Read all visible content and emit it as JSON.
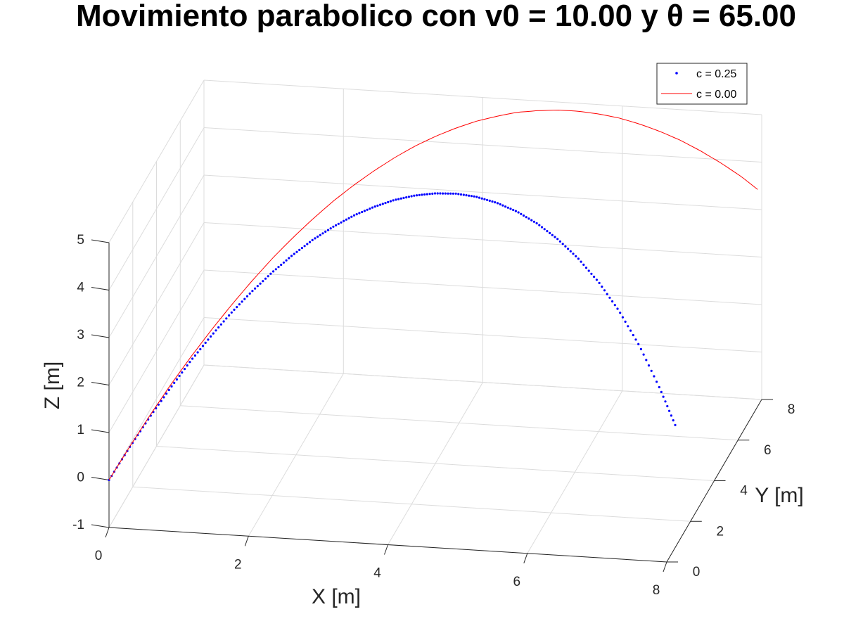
{
  "chart_data": {
    "type": "scatter",
    "projection": "3d",
    "title": "Movimiento parabolico con v0 = 10.00 y θ = 65.00",
    "xlabel": "X [m]",
    "ylabel": "Y [m]",
    "zlabel": "Z [m]",
    "xlim": [
      0,
      8
    ],
    "ylim": [
      0,
      8
    ],
    "zlim": [
      -1,
      5
    ],
    "x_ticks": [
      "0",
      "2",
      "4",
      "6",
      "8"
    ],
    "y_ticks": [
      "0",
      "2",
      "4",
      "6",
      "8"
    ],
    "z_ticks": [
      "-1",
      "0",
      "1",
      "2",
      "3",
      "4",
      "5"
    ],
    "grid": true,
    "legend_position": "top-right",
    "series": [
      {
        "name": "c = 0.25",
        "style": "dots",
        "color": "#0000ff",
        "samples": 220,
        "x": [
          0.0,
          0.25,
          0.5,
          0.75,
          1.0,
          1.25,
          1.5,
          1.75,
          2.0,
          2.25,
          2.5,
          2.75,
          3.0,
          3.25,
          3.5,
          3.75,
          4.0,
          4.25,
          4.5,
          4.75,
          5.0,
          5.25,
          5.5,
          5.75,
          6.0,
          6.25,
          6.5,
          6.75,
          6.94
        ],
        "y": [
          0.0,
          0.25,
          0.5,
          0.75,
          1.0,
          1.25,
          1.5,
          1.75,
          2.0,
          2.25,
          2.5,
          2.75,
          3.0,
          3.25,
          3.5,
          3.75,
          4.0,
          4.25,
          4.5,
          4.75,
          5.0,
          5.25,
          5.5,
          5.75,
          6.0,
          6.25,
          6.5,
          6.75,
          6.94
        ],
        "z": [
          0.0,
          0.6,
          1.16,
          1.68,
          2.17,
          2.61,
          3.02,
          3.38,
          3.7,
          3.98,
          4.22,
          4.41,
          4.56,
          4.66,
          4.72,
          4.73,
          4.69,
          4.6,
          4.45,
          4.24,
          3.97,
          3.63,
          3.22,
          2.73,
          2.15,
          1.46,
          0.64,
          -0.34,
          -1.18
        ]
      },
      {
        "name": "c = 0.00",
        "style": "line",
        "color": "#ff0000",
        "samples": 120,
        "x": [
          0.0,
          0.25,
          0.5,
          0.75,
          1.0,
          1.25,
          1.5,
          1.75,
          2.0,
          2.25,
          2.5,
          2.75,
          3.0,
          3.25,
          3.5,
          3.75,
          4.0,
          4.25,
          4.5,
          4.75,
          5.0,
          5.25,
          5.5,
          5.75,
          6.0,
          6.25,
          6.5,
          6.75,
          7.0,
          7.25,
          7.5,
          7.75,
          7.95
        ],
        "y": [
          0.0,
          0.25,
          0.5,
          0.75,
          1.0,
          1.25,
          1.5,
          1.75,
          2.0,
          2.25,
          2.5,
          2.75,
          3.0,
          3.25,
          3.5,
          3.75,
          4.0,
          4.25,
          4.5,
          4.75,
          5.0,
          5.25,
          5.5,
          5.75,
          6.0,
          6.25,
          6.5,
          6.75,
          7.0,
          7.25,
          7.5,
          7.75,
          7.95
        ],
        "z": [
          0.0,
          0.61,
          1.19,
          1.74,
          2.25,
          2.73,
          3.18,
          3.6,
          3.99,
          4.34,
          4.66,
          4.95,
          5.2,
          5.42,
          5.61,
          5.77,
          5.89,
          5.98,
          6.04,
          6.06,
          6.06,
          6.01,
          5.94,
          5.83,
          5.69,
          5.52,
          5.31,
          5.07,
          4.8,
          4.49,
          4.15,
          3.78,
          3.44
        ]
      }
    ]
  }
}
